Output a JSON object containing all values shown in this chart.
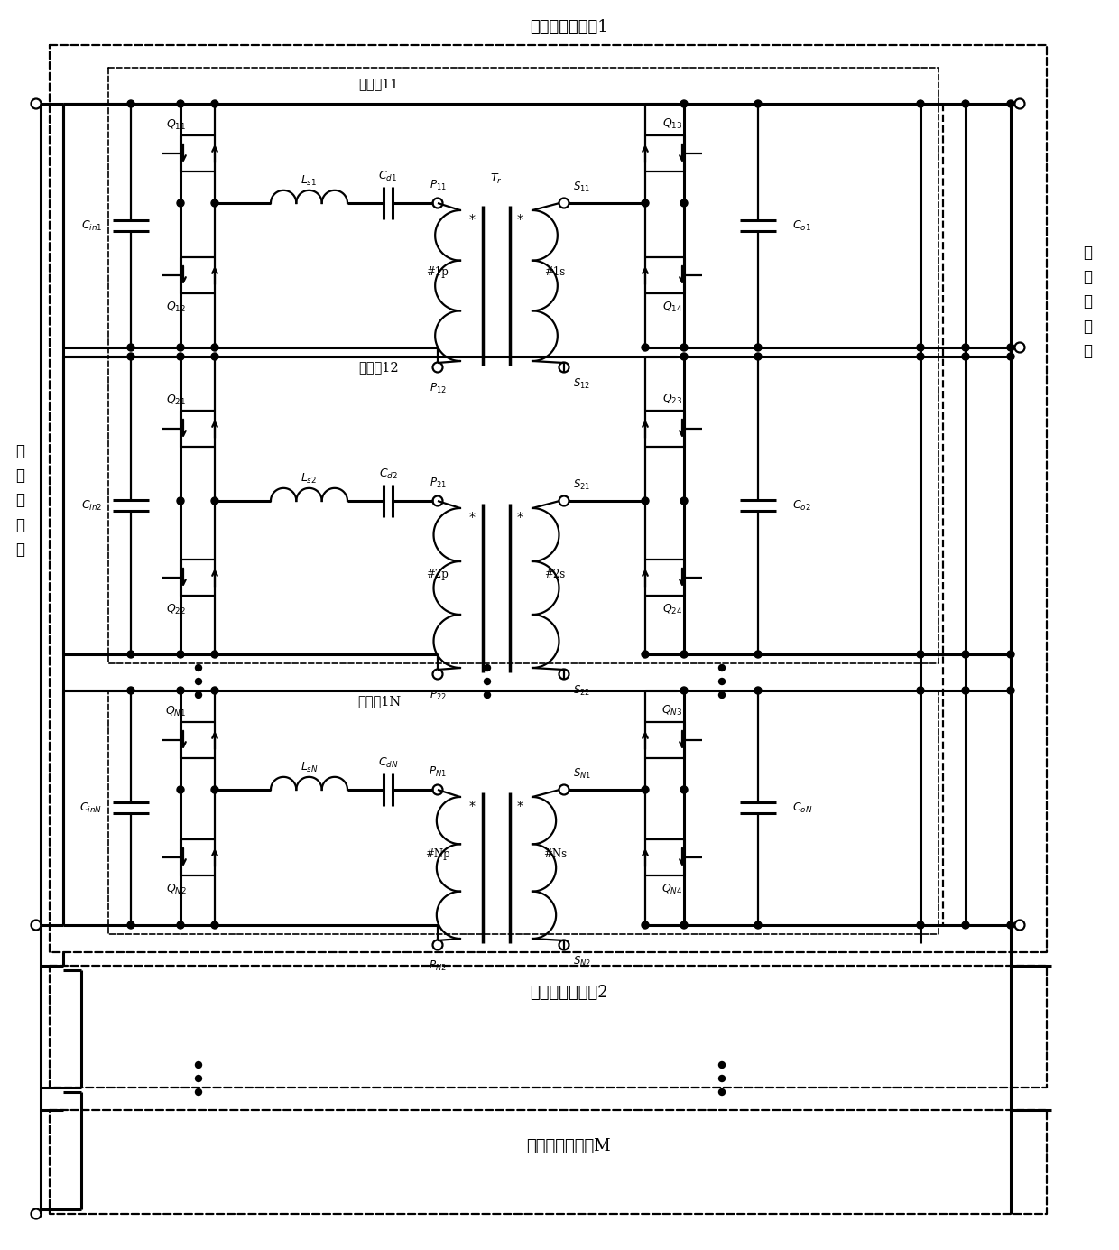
{
  "figsize": [
    12.4,
    13.85
  ],
  "dpi": 100,
  "bg_color": "#ffffff",
  "labels": {
    "unit1": "直流变压器单元1",
    "unit2": "直流变压器单元2",
    "unitM": "直流变压器单元M",
    "sm11": "子模块11",
    "sm12": "子模块12",
    "sm1N": "子模块1N",
    "left_side": "中\n压\n直\n流\n侧",
    "right_side": "低\n压\n直\n流\n侧"
  }
}
